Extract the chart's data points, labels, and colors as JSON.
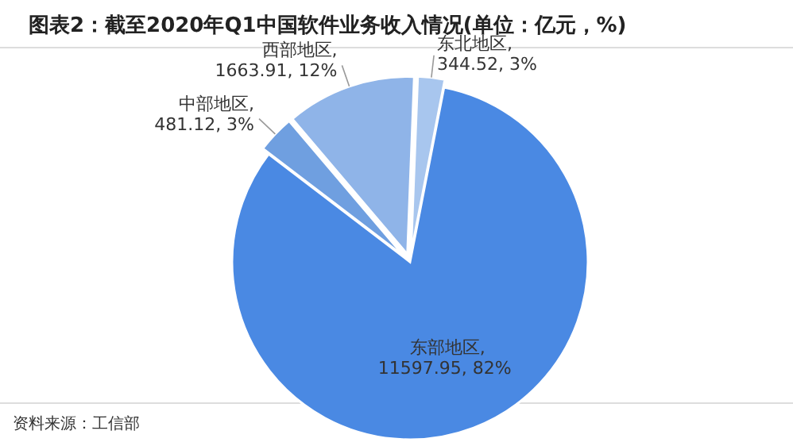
{
  "chart_data": {
    "type": "pie",
    "title": "图表2：截至2020年Q1中国软件业务收入情况(单位：亿元，%)",
    "categories": [
      "东部地区",
      "中部地区",
      "西部地区",
      "东北地区"
    ],
    "values": [
      11597.95,
      481.12,
      1663.91,
      344.52
    ],
    "value_labels": [
      ", 11597.95, 82%",
      ", 481.12, 3%",
      ", 1663.91, 12%",
      ", 344.52, 3%"
    ],
    "colors": [
      "#4a89e3",
      "#6f9fe0",
      "#8fb4e8",
      "#a8c6ee"
    ],
    "annotations": [
      "资料来源：工信部"
    ]
  }
}
